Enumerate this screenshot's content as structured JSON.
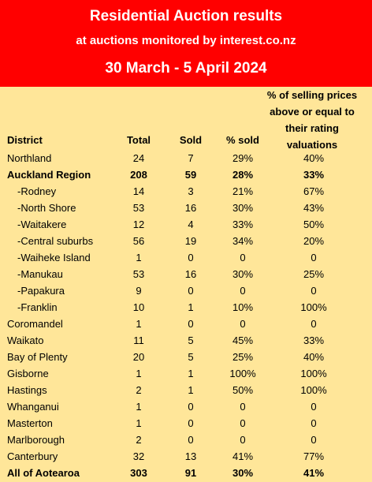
{
  "title": "Residential Auction results",
  "subtitle": "at auctions monitored by interest.co.nz",
  "period": "30 March - 5 April 2024",
  "columns": {
    "district": "District",
    "total": "Total",
    "sold": "Sold",
    "pct_sold": "% sold",
    "pct_above": "% of selling prices\nabove or equal to\ntheir rating\nvaluations"
  },
  "rows": [
    {
      "district": "Northland",
      "total": "24",
      "sold": "7",
      "pct_sold": "29%",
      "pct_above": "40%",
      "bold": false,
      "sub": false
    },
    {
      "district": "Auckland Region",
      "total": "208",
      "sold": "59",
      "pct_sold": "28%",
      "pct_above": "33%",
      "bold": true,
      "sub": false
    },
    {
      "district": "-Rodney",
      "total": "14",
      "sold": "3",
      "pct_sold": "21%",
      "pct_above": "67%",
      "bold": false,
      "sub": true
    },
    {
      "district": "-North Shore",
      "total": "53",
      "sold": "16",
      "pct_sold": "30%",
      "pct_above": "43%",
      "bold": false,
      "sub": true
    },
    {
      "district": "-Waitakere",
      "total": "12",
      "sold": "4",
      "pct_sold": "33%",
      "pct_above": "50%",
      "bold": false,
      "sub": true
    },
    {
      "district": "-Central suburbs",
      "total": "56",
      "sold": "19",
      "pct_sold": "34%",
      "pct_above": "20%",
      "bold": false,
      "sub": true
    },
    {
      "district": "-Waiheke Island",
      "total": "1",
      "sold": "0",
      "pct_sold": "0",
      "pct_above": "0",
      "bold": false,
      "sub": true
    },
    {
      "district": "-Manukau",
      "total": "53",
      "sold": "16",
      "pct_sold": "30%",
      "pct_above": "25%",
      "bold": false,
      "sub": true
    },
    {
      "district": "-Papakura",
      "total": "9",
      "sold": "0",
      "pct_sold": "0",
      "pct_above": "0",
      "bold": false,
      "sub": true
    },
    {
      "district": "-Franklin",
      "total": "10",
      "sold": "1",
      "pct_sold": "10%",
      "pct_above": "100%",
      "bold": false,
      "sub": true
    },
    {
      "district": "Coromandel",
      "total": "1",
      "sold": "0",
      "pct_sold": "0",
      "pct_above": "0",
      "bold": false,
      "sub": false
    },
    {
      "district": "Waikato",
      "total": "11",
      "sold": "5",
      "pct_sold": "45%",
      "pct_above": "33%",
      "bold": false,
      "sub": false
    },
    {
      "district": "Bay of Plenty",
      "total": "20",
      "sold": "5",
      "pct_sold": "25%",
      "pct_above": "40%",
      "bold": false,
      "sub": false
    },
    {
      "district": "Gisborne",
      "total": "1",
      "sold": "1",
      "pct_sold": "100%",
      "pct_above": "100%",
      "bold": false,
      "sub": false
    },
    {
      "district": "Hastings",
      "total": "2",
      "sold": "1",
      "pct_sold": "50%",
      "pct_above": "100%",
      "bold": false,
      "sub": false
    },
    {
      "district": "Whanganui",
      "total": "1",
      "sold": "0",
      "pct_sold": "0",
      "pct_above": "0",
      "bold": false,
      "sub": false
    },
    {
      "district": "Masterton",
      "total": "1",
      "sold": "0",
      "pct_sold": "0",
      "pct_above": "0",
      "bold": false,
      "sub": false
    },
    {
      "district": "Marlborough",
      "total": "2",
      "sold": "0",
      "pct_sold": "0",
      "pct_above": "0",
      "bold": false,
      "sub": false
    },
    {
      "district": "Canterbury",
      "total": "32",
      "sold": "13",
      "pct_sold": "41%",
      "pct_above": "77%",
      "bold": false,
      "sub": false
    },
    {
      "district": "All of Aotearoa",
      "total": "303",
      "sold": "91",
      "pct_sold": "30%",
      "pct_above": "41%",
      "bold": true,
      "sub": false
    }
  ],
  "colors": {
    "banner": "#ff0000",
    "banner_text": "#ffffff",
    "table_bg": "#ffe699"
  }
}
